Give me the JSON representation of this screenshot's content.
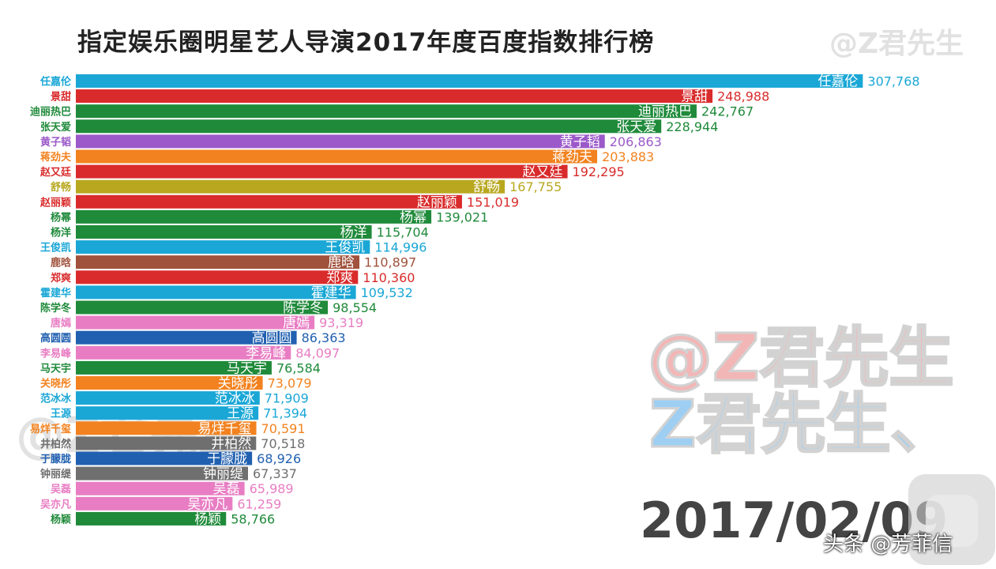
{
  "chart_data": {
    "type": "bar",
    "orientation": "horizontal",
    "title": "指定娱乐圈明星艺人导演2017年度百度指数排行榜",
    "xlabel": "",
    "ylabel": "",
    "xlim": [
      0,
      320000
    ],
    "grid": false,
    "legend": "none",
    "bars": [
      {
        "name": "任嘉伦",
        "value": 307768,
        "label": "307,768",
        "color": "#1aa7d6"
      },
      {
        "name": "景甜",
        "value": 248988,
        "label": "248,988",
        "color": "#d92b2b"
      },
      {
        "name": "迪丽热巴",
        "value": 242767,
        "label": "242,767",
        "color": "#1f8a3a"
      },
      {
        "name": "张天爱",
        "value": 228944,
        "label": "228,944",
        "color": "#1f8a3a"
      },
      {
        "name": "黄子韬",
        "value": 206863,
        "label": "206,863",
        "color": "#9b59c9"
      },
      {
        "name": "蒋劲夫",
        "value": 203883,
        "label": "203,883",
        "color": "#f2821f"
      },
      {
        "name": "赵又廷",
        "value": 192295,
        "label": "192,295",
        "color": "#d92b2b"
      },
      {
        "name": "舒畅",
        "value": 167755,
        "label": "167,755",
        "color": "#b8a820"
      },
      {
        "name": "赵丽颖",
        "value": 151019,
        "label": "151,019",
        "color": "#d92b2b"
      },
      {
        "name": "杨幂",
        "value": 139021,
        "label": "139,021",
        "color": "#1f8a3a"
      },
      {
        "name": "杨洋",
        "value": 115704,
        "label": "115,704",
        "color": "#1f8a3a"
      },
      {
        "name": "王俊凯",
        "value": 114996,
        "label": "114,996",
        "color": "#1aa7d6"
      },
      {
        "name": "鹿晗",
        "value": 110897,
        "label": "110,897",
        "color": "#a0523c"
      },
      {
        "name": "郑爽",
        "value": 110360,
        "label": "110,360",
        "color": "#d92b2b"
      },
      {
        "name": "霍建华",
        "value": 109532,
        "label": "109,532",
        "color": "#1aa7d6"
      },
      {
        "name": "陈学冬",
        "value": 98554,
        "label": "98,554",
        "color": "#1f8a3a"
      },
      {
        "name": "唐嫣",
        "value": 93319,
        "label": "93,319",
        "color": "#e87dc3"
      },
      {
        "name": "高圆圆",
        "value": 86363,
        "label": "86,363",
        "color": "#2160b0"
      },
      {
        "name": "李易峰",
        "value": 84097,
        "label": "84,097",
        "color": "#e87dc3"
      },
      {
        "name": "马天宇",
        "value": 76584,
        "label": "76,584",
        "color": "#1f8a3a"
      },
      {
        "name": "关晓彤",
        "value": 73079,
        "label": "73,079",
        "color": "#f2821f"
      },
      {
        "name": "范冰冰",
        "value": 71909,
        "label": "71,909",
        "color": "#1aa7d6"
      },
      {
        "name": "王源",
        "value": 71394,
        "label": "71,394",
        "color": "#1aa7d6"
      },
      {
        "name": "易烊千玺",
        "value": 70591,
        "label": "70,591",
        "color": "#f2821f"
      },
      {
        "name": "井柏然",
        "value": 70518,
        "label": "70,518",
        "color": "#6f6f6f"
      },
      {
        "name": "于朦胧",
        "value": 68926,
        "label": "68,926",
        "color": "#2160b0"
      },
      {
        "name": "钟丽缇",
        "value": 67337,
        "label": "67,337",
        "color": "#6f6f6f"
      },
      {
        "name": "吴磊",
        "value": 65989,
        "label": "65,989",
        "color": "#e87dc3"
      },
      {
        "name": "吴亦凡",
        "value": 61259,
        "label": "61,259",
        "color": "#e87dc3"
      },
      {
        "name": "杨颖",
        "value": 58766,
        "label": "58,766",
        "color": "#1f8a3a"
      }
    ]
  },
  "date": "2017/02/09",
  "watermarks": {
    "top_right": "@Z君先生",
    "big_line1": "@Z君先生",
    "big_line2": "Z君先生、",
    "left": "@Z君先生"
  },
  "footer": {
    "credit": "头条 @芳菲信"
  }
}
